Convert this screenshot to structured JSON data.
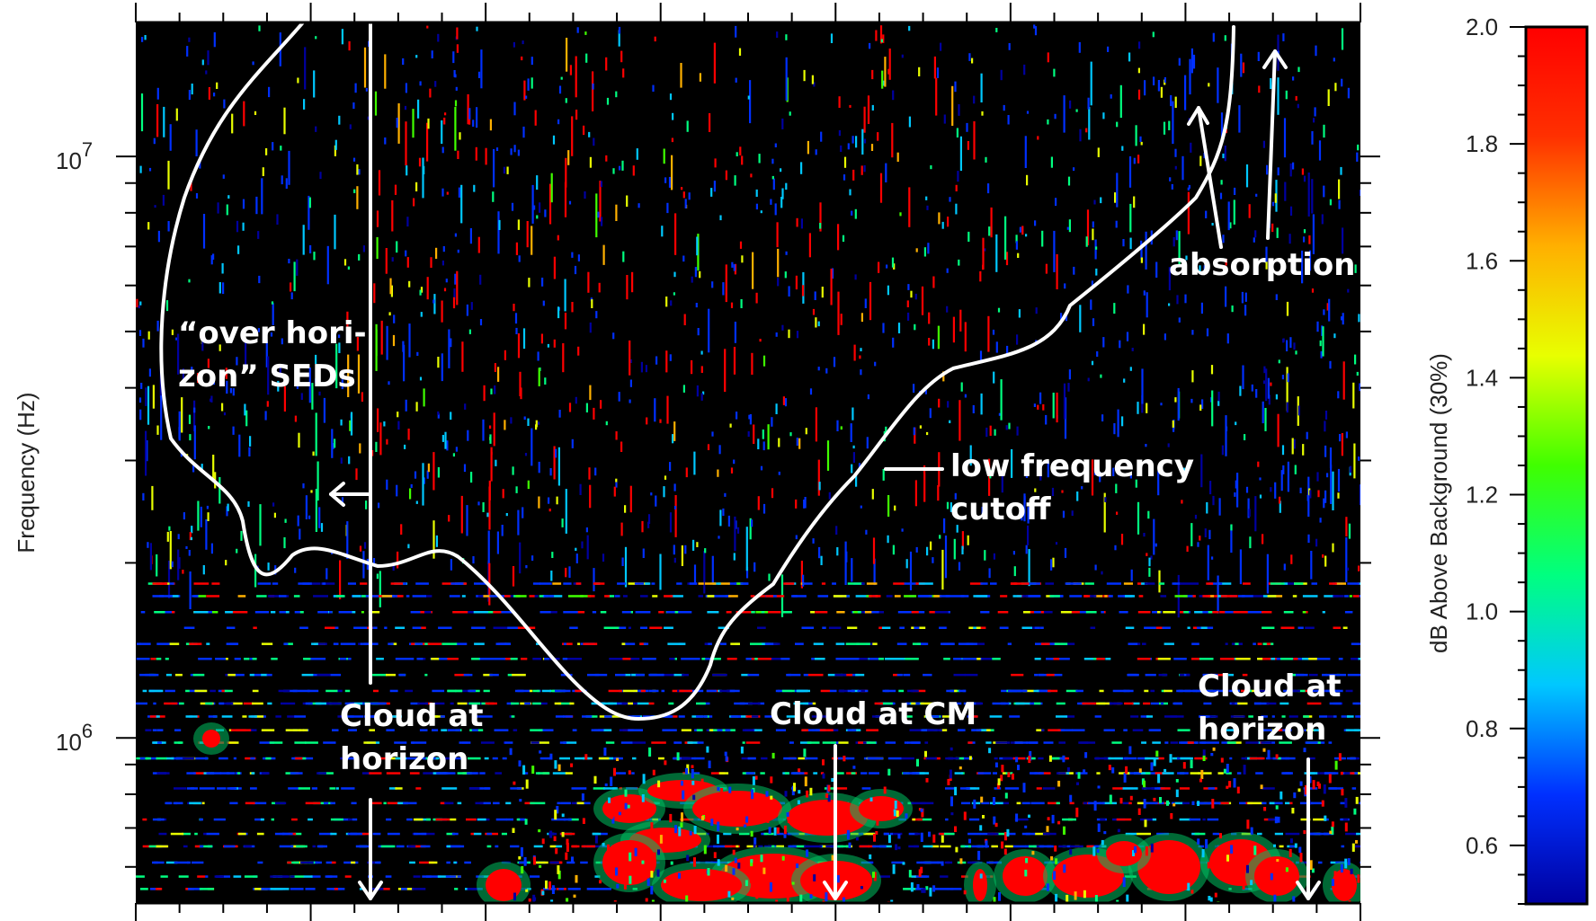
{
  "chart_data": {
    "type": "heatmap",
    "ylabel": "Frequency (Hz)",
    "yscale": "log",
    "yticks": [
      {
        "value": 10000000,
        "base": "10",
        "exp": "7"
      },
      {
        "value": 1000000,
        "base": "10",
        "exp": "6"
      }
    ],
    "ylim": [
      520000,
      17000000
    ],
    "colorbar": {
      "label": "dB Above Background (30%)",
      "ticks": [
        "2.0",
        "1.8",
        "1.6",
        "1.4",
        "1.2",
        "1.0",
        "0.8",
        "0.6"
      ],
      "range": [
        0.5,
        2.0
      ],
      "colors": [
        "#0000a0",
        "#0030ff",
        "#00c8ff",
        "#00ff80",
        "#40ff00",
        "#e8ff00",
        "#ffb000",
        "#ff3000",
        "#ff0000"
      ]
    },
    "background_color": "#000000",
    "annotations": [
      {
        "lines": [
          "“over hori-",
          "zon” SEDs"
        ]
      },
      {
        "lines": [
          "low frequency",
          "cutoff"
        ]
      },
      {
        "lines": [
          "absorption"
        ]
      },
      {
        "lines": [
          "Cloud at",
          "horizon"
        ]
      },
      {
        "lines": [
          "Cloud at CM"
        ]
      },
      {
        "lines": [
          "Cloud at",
          "horizon"
        ]
      }
    ]
  }
}
